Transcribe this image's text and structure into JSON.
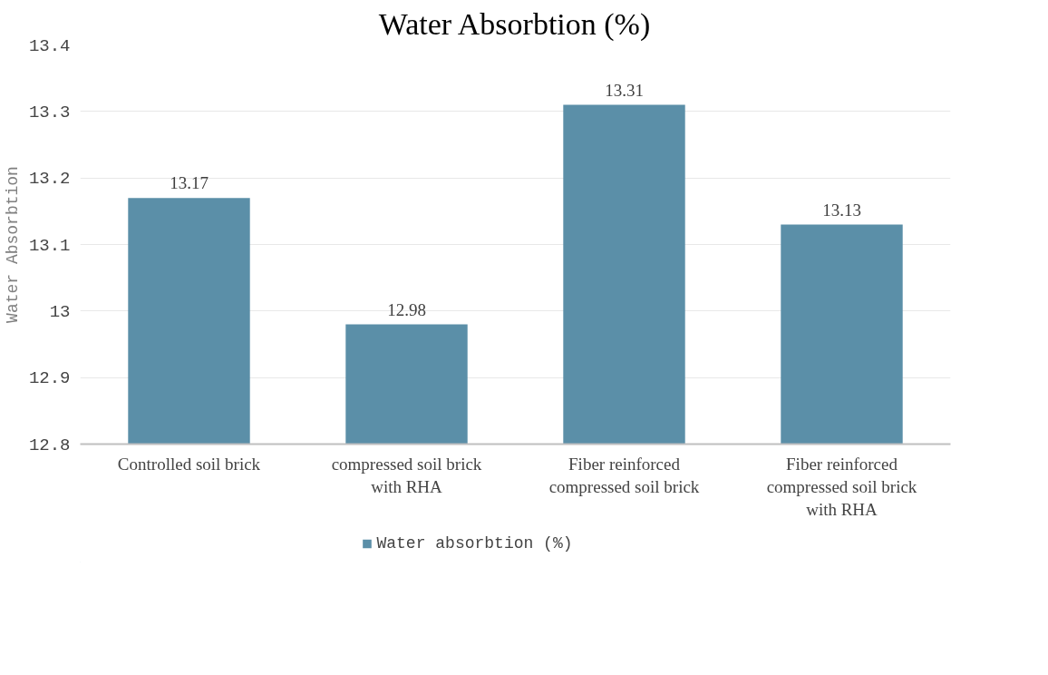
{
  "chart_data": {
    "type": "bar",
    "title": "Water Absorbtion (%)",
    "ylabel": "Water Absorbtion",
    "categories": [
      "Controlled soil brick",
      "compressed soil brick with RHA",
      "Fiber reinforced compressed soil brick",
      "Fiber reinforced compressed soil brick with RHA"
    ],
    "series": [
      {
        "name": "Water absorbtion (%)",
        "color": "#5b8fa8",
        "values": [
          13.17,
          12.98,
          13.31,
          13.13
        ]
      }
    ],
    "ylim": [
      12.8,
      13.4
    ],
    "yticks": [
      12.8,
      12.9,
      13,
      13.1,
      13.2,
      13.3,
      13.4
    ],
    "grid": "y",
    "legend": "bottom",
    "data_labels": true
  }
}
